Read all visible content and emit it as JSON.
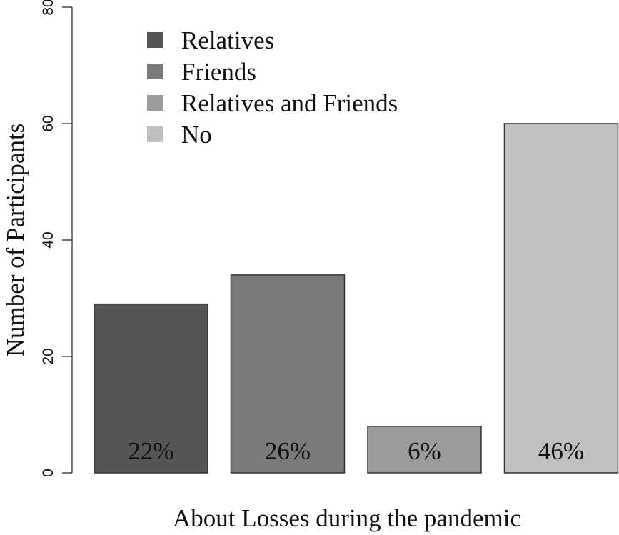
{
  "chart_data": {
    "type": "bar",
    "categories": [
      "Relatives",
      "Friends",
      "Relatives and Friends",
      "No"
    ],
    "values": [
      29,
      34,
      8,
      60
    ],
    "bar_labels": [
      "22%",
      "26%",
      "6%",
      "46%"
    ],
    "colors": [
      "#555555",
      "#7a7a7a",
      "#9c9c9c",
      "#c0c0c0"
    ],
    "title": "",
    "xlabel": "About Losses during the pandemic",
    "ylabel": "Number of Participants",
    "ylim": [
      0,
      80
    ],
    "yticks": [
      0,
      20,
      40,
      60,
      80
    ],
    "ytick_labels": [
      "0",
      "20",
      "40",
      "60",
      "80"
    ],
    "legend": {
      "position": "top-left",
      "entries": [
        "Relatives",
        "Friends",
        "Relatives and Friends",
        "No"
      ]
    },
    "grid": false
  }
}
